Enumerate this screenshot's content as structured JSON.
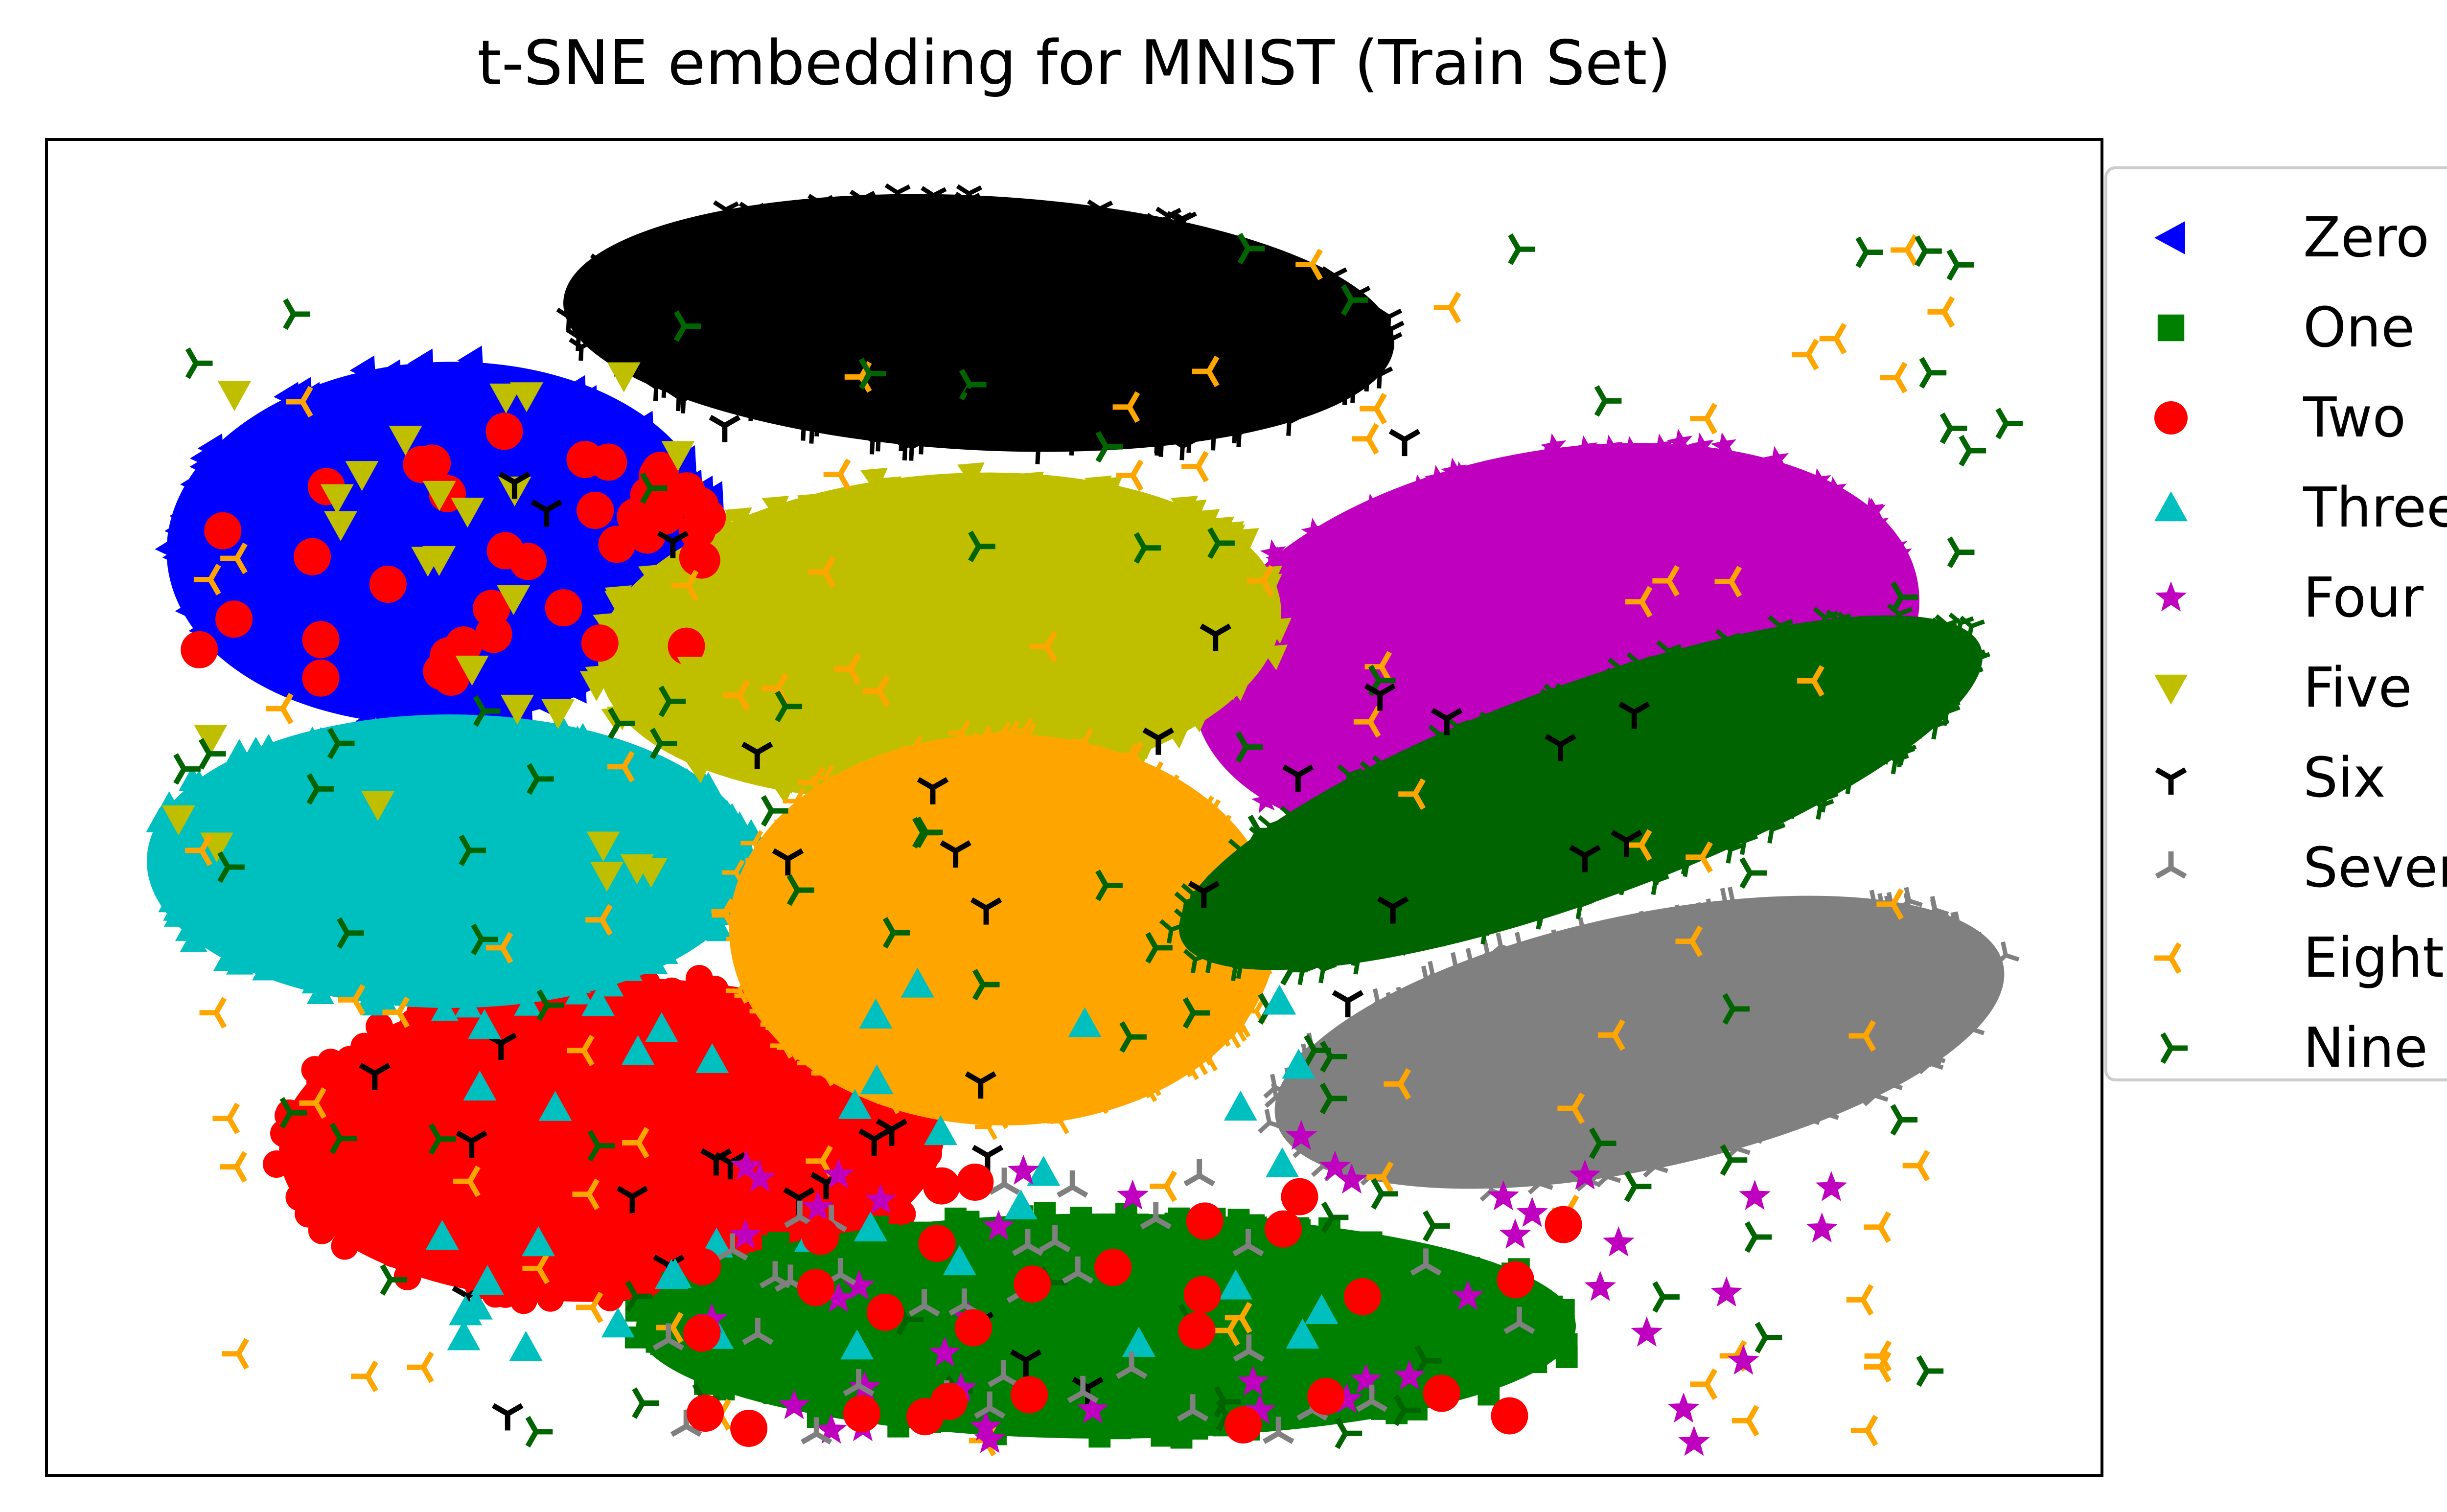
{
  "chart_data": {
    "type": "scatter",
    "title": "t-SNE embedding for MNIST (Train Set)",
    "xlabel": "",
    "ylabel": "",
    "xticks": [],
    "yticks": [],
    "grid": false,
    "legend_position": "outside-right",
    "series": [
      {
        "name": "Zero",
        "marker": "triangle-left",
        "color": "#0000ff"
      },
      {
        "name": "One",
        "marker": "square",
        "color": "#008000"
      },
      {
        "name": "Two",
        "marker": "circle",
        "color": "#ff0000"
      },
      {
        "name": "Three",
        "marker": "triangle-up",
        "color": "#00bfbf"
      },
      {
        "name": "Four",
        "marker": "star",
        "color": "#bf00bf"
      },
      {
        "name": "Five",
        "marker": "triangle-down",
        "color": "#bfbf00"
      },
      {
        "name": "Six",
        "marker": "tri-down",
        "color": "#000000"
      },
      {
        "name": "Seven",
        "marker": "tri-up",
        "color": "#808080"
      },
      {
        "name": "Eight",
        "marker": "tri-left",
        "color": "#ffa500"
      },
      {
        "name": "Nine",
        "marker": "tri-right",
        "color": "#006400"
      }
    ]
  }
}
